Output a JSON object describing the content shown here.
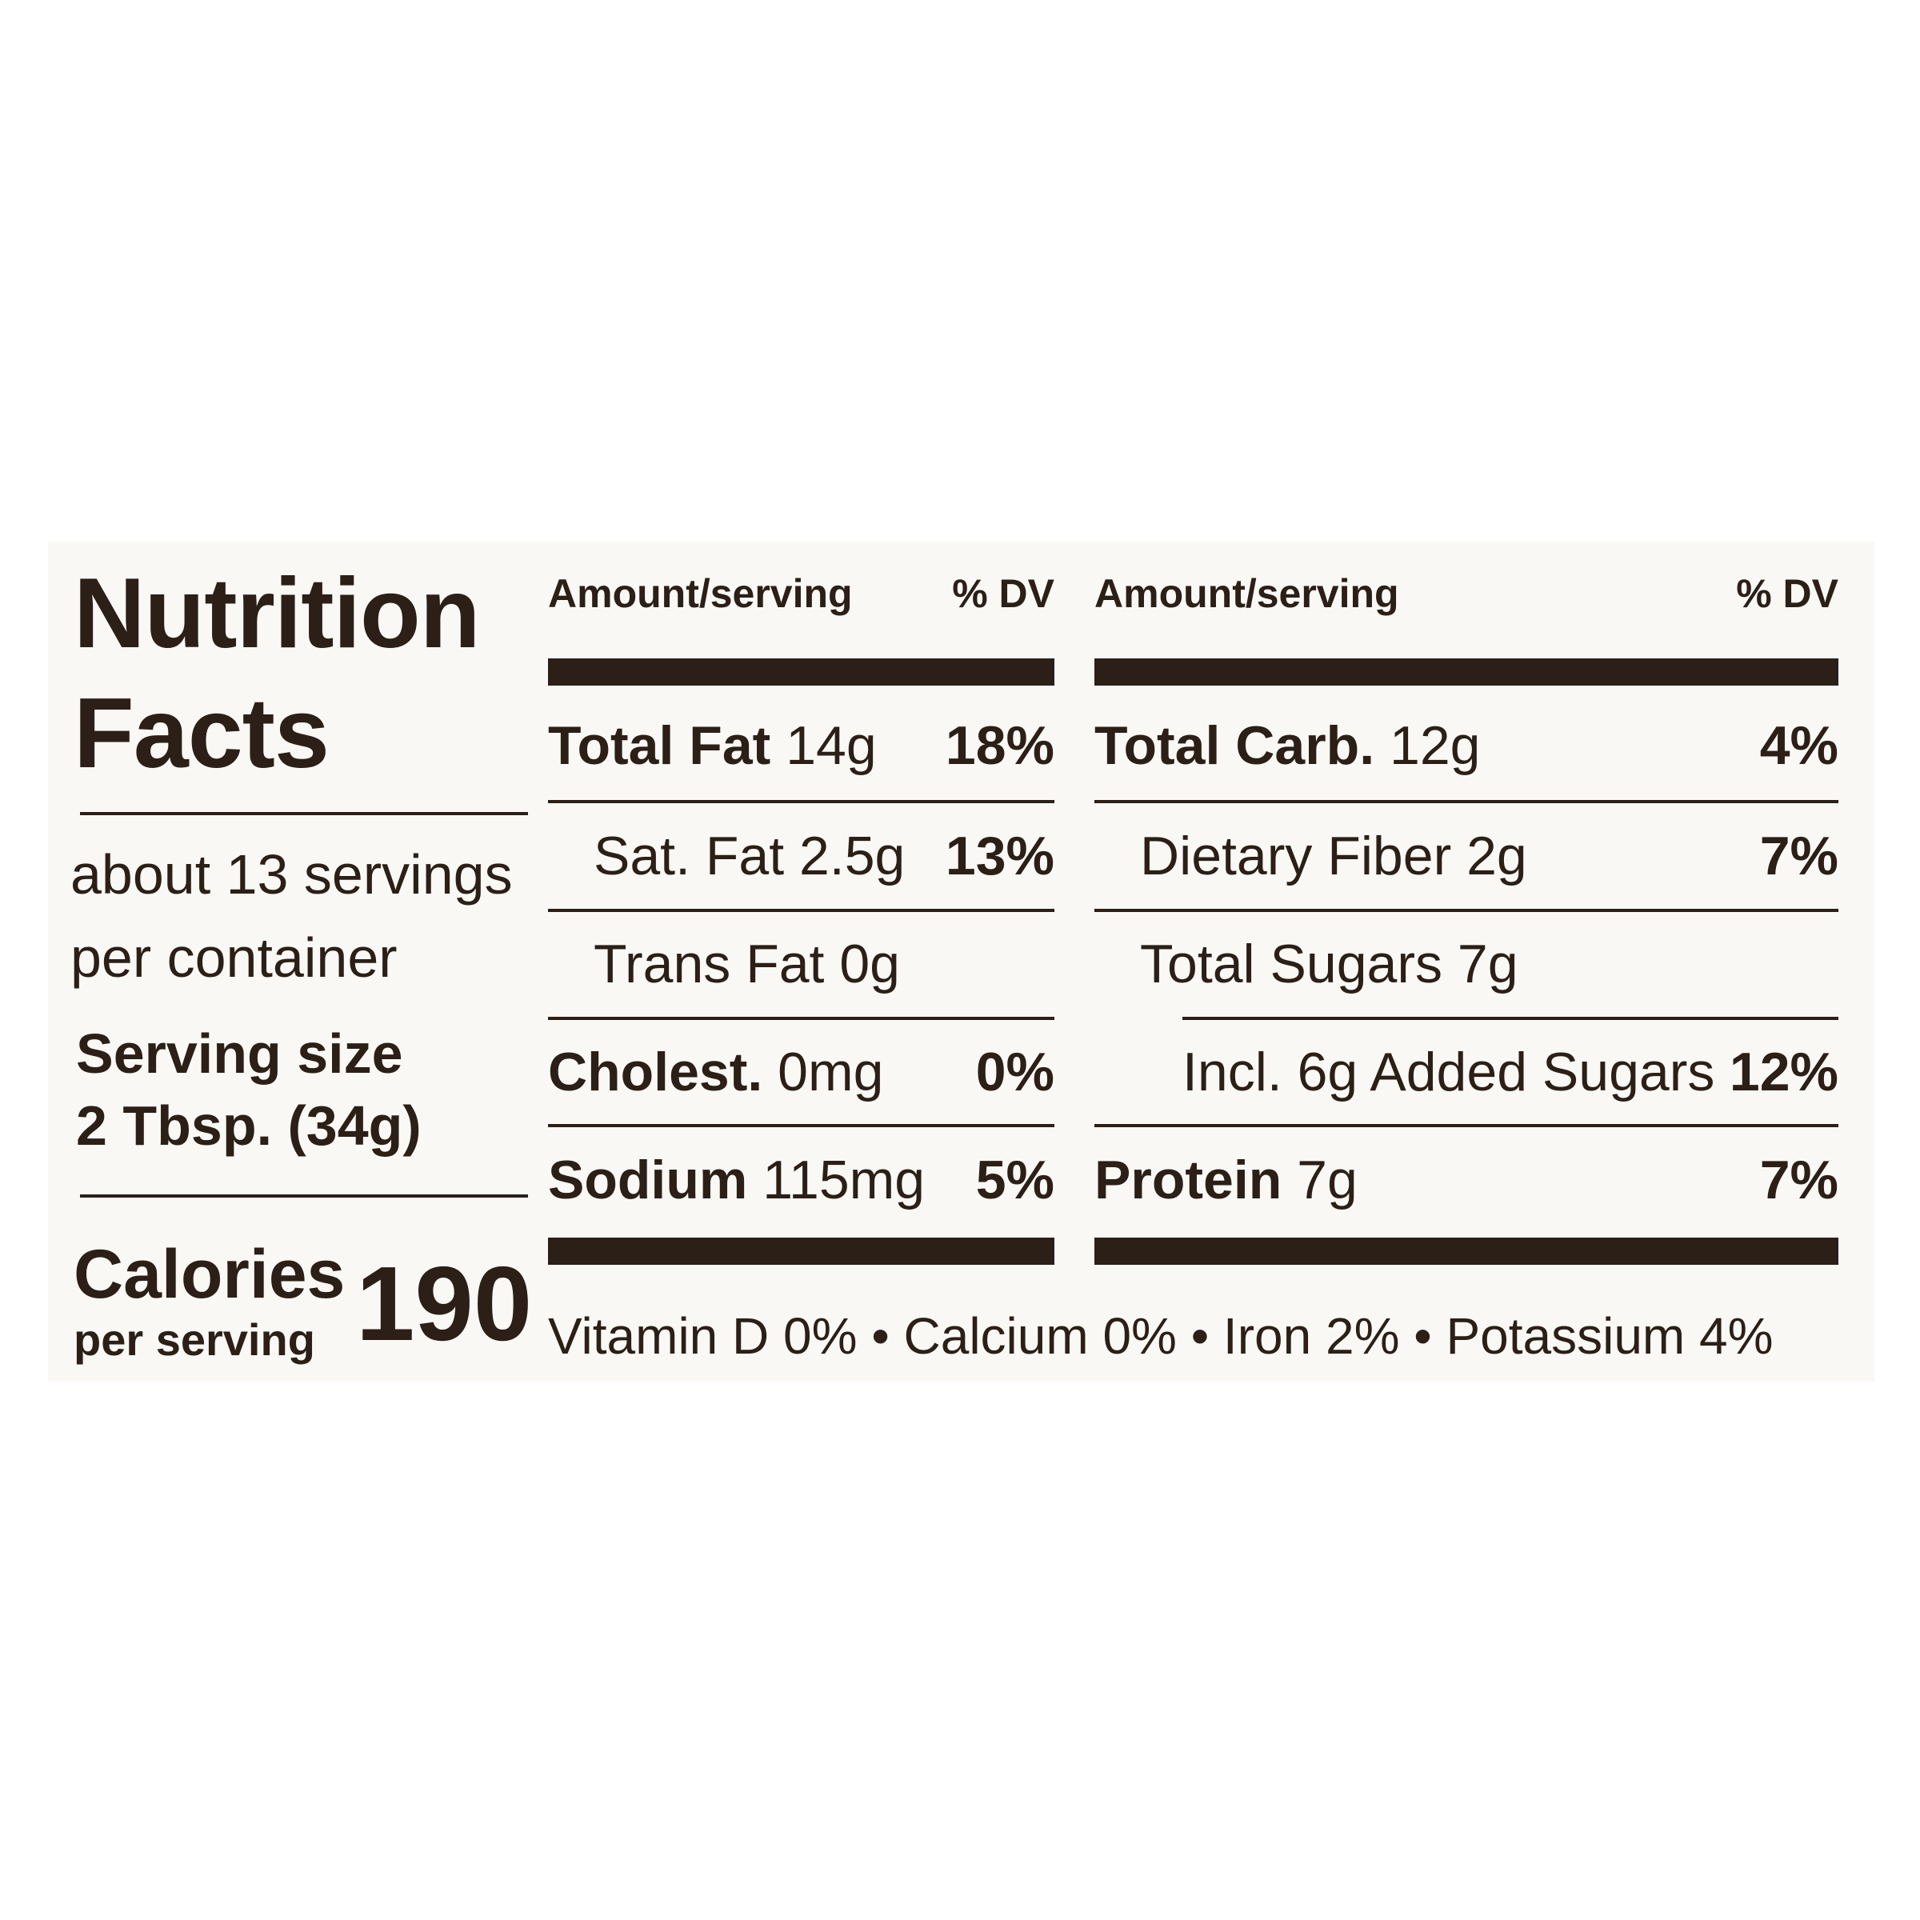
{
  "label": {
    "title_line1": "Nutrition",
    "title_line2": "Facts",
    "servings_line1": "about 13 servings",
    "servings_line2": "per container",
    "serving_size_line1": "Serving size",
    "serving_size_line2": "2 Tbsp. (34g)",
    "calories_label": "Calories",
    "calories_sub": "per serving",
    "calories_value": "190"
  },
  "left_table": {
    "header_amount": "Amount/serving",
    "header_dv": "% DV",
    "rows": [
      {
        "name": "Total Fat",
        "amount": "14g",
        "dv": "18%"
      },
      {
        "name": "Sat. Fat 2.5g",
        "amount": "",
        "dv": "13%"
      },
      {
        "name": "Trans Fat 0g",
        "amount": "",
        "dv": ""
      },
      {
        "name": "Cholest.",
        "amount": "0mg",
        "dv": "0%"
      },
      {
        "name": "Sodium",
        "amount": "115mg",
        "dv": "5%"
      }
    ]
  },
  "right_table": {
    "header_amount": "Amount/serving",
    "header_dv": "% DV",
    "rows": [
      {
        "name": "Total Carb.",
        "amount": "12g",
        "dv": "4%"
      },
      {
        "name": "Dietary Fiber 2g",
        "amount": "",
        "dv": "7%"
      },
      {
        "name": "Total Sugars 7g",
        "amount": "",
        "dv": ""
      },
      {
        "name": "Incl. 6g Added Sugars",
        "amount": "",
        "dv": "12%"
      },
      {
        "name": "Protein",
        "amount": "7g",
        "dv": "7%"
      }
    ]
  },
  "vitamins": "Vitamin D 0% • Calcium 0% • Iron 2% • Potassium 4%"
}
